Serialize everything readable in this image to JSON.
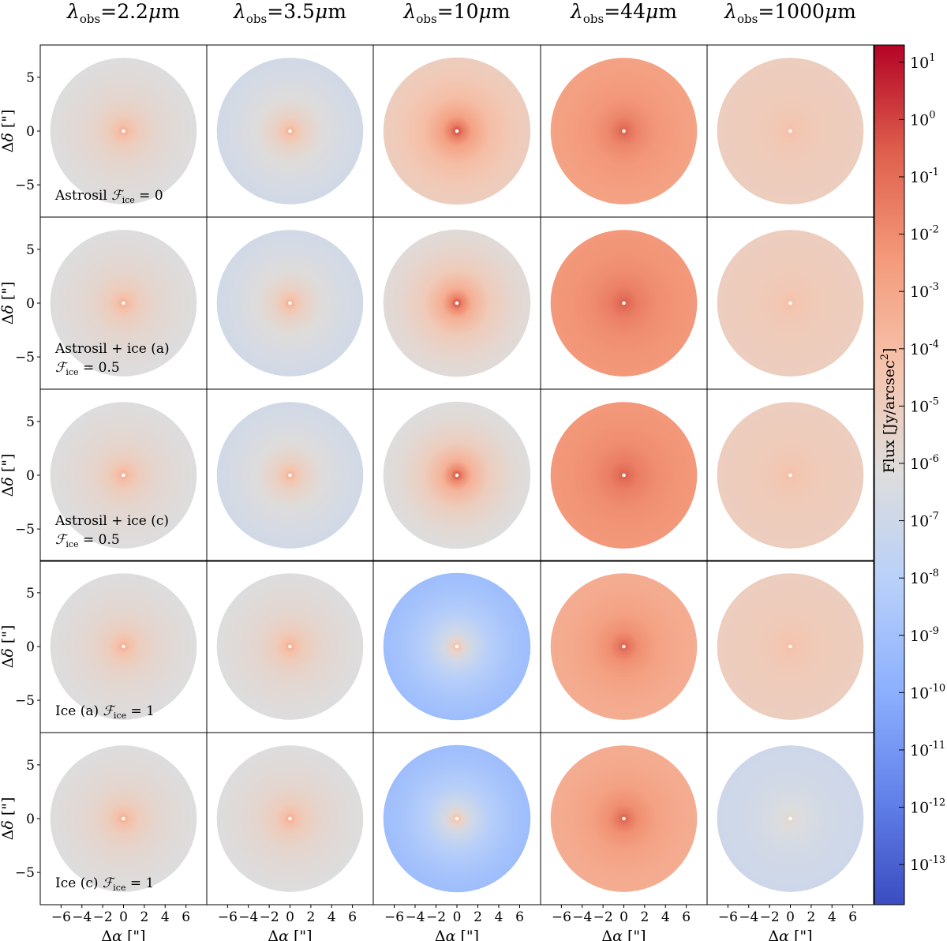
{
  "chart_data": {
    "type": "heatmap",
    "description_kind": "grid of radial flux maps",
    "column_titles": [
      {
        "sym": "λ",
        "sub": "obs",
        "value": "=2.2",
        "unit": "μm"
      },
      {
        "sym": "λ",
        "sub": "obs",
        "value": "=3.5",
        "unit": "μm"
      },
      {
        "sym": "λ",
        "sub": "obs",
        "value": "=10",
        "unit": "μm"
      },
      {
        "sym": "λ",
        "sub": "obs",
        "value": "=44",
        "unit": "μm"
      },
      {
        "sym": "λ",
        "sub": "obs",
        "value": "=1000",
        "unit": "μm"
      }
    ],
    "rows": [
      {
        "label_lines": [
          {
            "pre": "Astrosil ",
            "F": "ℱ",
            "sub": "ice",
            "post": " = 0"
          }
        ]
      },
      {
        "label_lines": [
          {
            "pre": "Astrosil + ice (a)",
            "F": "",
            "sub": "",
            "post": ""
          },
          {
            "pre": "",
            "F": "ℱ",
            "sub": "ice",
            "post": " = 0.5"
          }
        ]
      },
      {
        "label_lines": [
          {
            "pre": "Astrosil + ice (c)",
            "F": "",
            "sub": "",
            "post": ""
          },
          {
            "pre": "",
            "F": "ℱ",
            "sub": "ice",
            "post": " = 0.5"
          }
        ]
      },
      {
        "label_lines": [
          {
            "pre": "Ice (a) ",
            "F": "ℱ",
            "sub": "ice",
            "post": " = 1"
          }
        ]
      },
      {
        "label_lines": [
          {
            "pre": "Ice (c) ",
            "F": "ℱ",
            "sub": "ice",
            "post": " = 1"
          }
        ]
      }
    ],
    "log_flux": {
      "comment": "approximate log10 flux [Jy/arcsec^2]: center (peak near star) and outer edge, rows x columns",
      "center": [
        [
          -3.0,
          -3.0,
          0.5,
          -0.3,
          -4.0
        ],
        [
          -3.0,
          -3.0,
          0.5,
          -0.3,
          -4.0
        ],
        [
          -3.0,
          -3.0,
          0.5,
          -0.3,
          -4.0
        ],
        [
          -3.0,
          -3.0,
          -3.5,
          -0.3,
          -4.0
        ],
        [
          -3.0,
          -3.0,
          -3.5,
          -0.3,
          -5.5
        ]
      ],
      "edge": [
        [
          -6.2,
          -6.8,
          -5.0,
          -2.8,
          -5.0
        ],
        [
          -6.2,
          -6.8,
          -6.0,
          -2.4,
          -5.0
        ],
        [
          -6.2,
          -6.8,
          -6.2,
          -2.4,
          -5.0
        ],
        [
          -6.2,
          -6.2,
          -9.2,
          -3.3,
          -5.0
        ],
        [
          -6.2,
          -6.2,
          -9.2,
          -3.3,
          -7.0
        ]
      ]
    },
    "xlabel": {
      "sym": "Δα",
      "unit": " [\"]"
    },
    "ylabel": {
      "sym": "Δδ",
      "unit": " [\"]"
    },
    "xlim": [
      -8,
      8
    ],
    "ylim": [
      -8,
      8
    ],
    "xticks": [
      -6,
      -4,
      -2,
      0,
      2,
      4,
      6
    ],
    "yticks": [
      5,
      0,
      -5
    ],
    "colorbar": {
      "label_pre": "Flux [Jy/arcsec",
      "label_sup": "2",
      "label_post": "]",
      "log_min": -13.7,
      "log_max": 1.3,
      "tick_exponents": [
        1,
        0,
        -1,
        -2,
        -3,
        -4,
        -5,
        -6,
        -7,
        -8,
        -9,
        -10,
        -11,
        -12,
        -13
      ],
      "tick_base": "10",
      "colormap": "coolwarm"
    }
  }
}
